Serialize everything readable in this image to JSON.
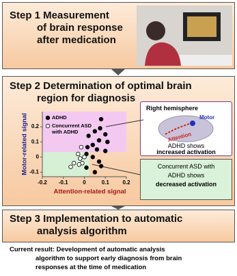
{
  "step1": {
    "lines": [
      "Step 1  Measurement",
      "of brain response",
      "after medication"
    ]
  },
  "step2": {
    "lines": [
      "Step 2  Determination of optimal brain",
      "region for diagnosis"
    ]
  },
  "scatter": {
    "type": "scatter",
    "xlabel": "Attention-related signal",
    "ylabel": "Motor-related signal",
    "xlim": [
      -0.2,
      0.2
    ],
    "ylim": [
      -0.13,
      0.3
    ],
    "xticks": [
      -0.2,
      -0.1,
      0,
      0.1,
      0.2
    ],
    "yticks": [
      -0.1,
      0,
      0.1,
      0.2
    ],
    "series": [
      {
        "name": "ADHD",
        "color": "#000000",
        "filled": true,
        "x": [
          0.08,
          0.075,
          0.1,
          0.05,
          0.02,
          0.07,
          0.11,
          0.04,
          0.06,
          0.1,
          0.01,
          0.04,
          0.07,
          0.08,
          0.01,
          0.05,
          0.015
        ],
        "y": [
          0.25,
          0.19,
          0.15,
          0.17,
          0.14,
          0.11,
          0.1,
          0.08,
          0.05,
          0.04,
          0.02,
          0.0,
          -0.03,
          -0.06,
          -0.07,
          -0.1,
          0.065
        ]
      },
      {
        "name": "Concurrent ASD with ADHD",
        "color": "#000000",
        "filled": false,
        "x": [
          -0.015,
          -0.03,
          -0.02,
          -0.05,
          -0.01,
          -0.065,
          0.0,
          -0.025
        ],
        "y": [
          0.065,
          0.02,
          -0.01,
          -0.04,
          -0.04,
          -0.065,
          0.0,
          -0.05
        ]
      }
    ]
  },
  "brain_box": {
    "title": "Right hemisphere",
    "motor": "Motor",
    "attention": "Attention",
    "lines": [
      "ADHD shows",
      "increased activation"
    ]
  },
  "asd_box": {
    "lines": [
      "Concurrent ASD with",
      "ADHD shows",
      "decreased activation"
    ]
  },
  "step3": {
    "lines": [
      "Step 3  Implementation to automatic",
      "analysis algorithm"
    ]
  },
  "result": {
    "lines": [
      "Current result: Development of automatic analysis",
      "algorithm to support early diagnosis from brain",
      "responses at the time of medication"
    ]
  }
}
